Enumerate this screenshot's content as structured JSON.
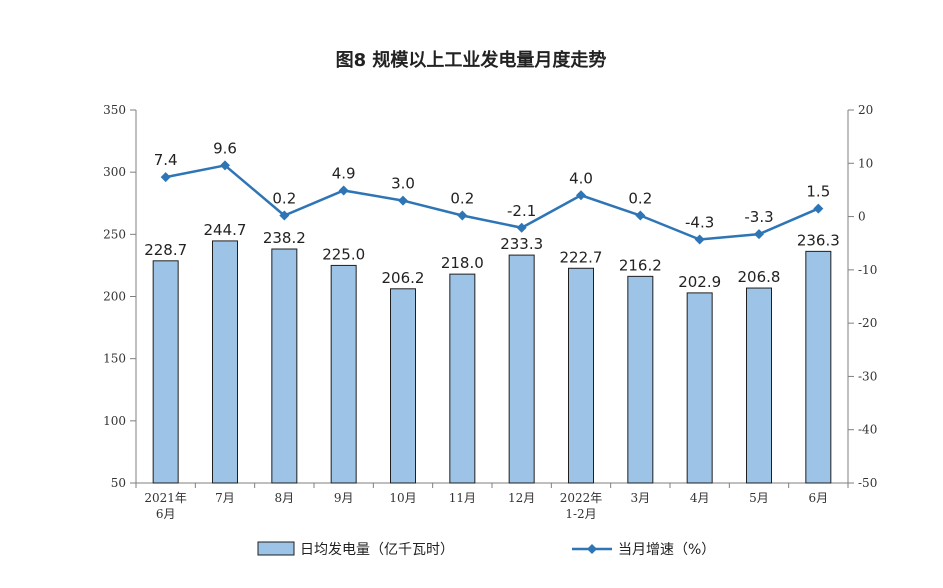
{
  "chart_data": {
    "type": "bar",
    "title": "图8  规模以上工业发电量月度走势",
    "categories": [
      [
        "2021年",
        "6月"
      ],
      [
        "7月"
      ],
      [
        "8月"
      ],
      [
        "9月"
      ],
      [
        "10月"
      ],
      [
        "11月"
      ],
      [
        "12月"
      ],
      [
        "2022年",
        "1-2月"
      ],
      [
        "3月"
      ],
      [
        "4月"
      ],
      [
        "5月"
      ],
      [
        "6月"
      ]
    ],
    "series": [
      {
        "name": "日均发电量（亿千瓦时）",
        "type": "bar",
        "axis": "left",
        "values": [
          228.7,
          244.7,
          238.2,
          225.0,
          206.2,
          218.0,
          233.3,
          222.7,
          216.2,
          202.9,
          206.8,
          236.3
        ],
        "labels": [
          "228.7",
          "244.7",
          "238.2",
          "225.0",
          "206.2",
          "218.0",
          "233.3",
          "222.7",
          "216.2",
          "202.9",
          "206.8",
          "236.3"
        ]
      },
      {
        "name": "当月增速（%）",
        "type": "line",
        "axis": "right",
        "values": [
          7.4,
          9.6,
          0.2,
          4.9,
          3.0,
          0.2,
          -2.1,
          4.0,
          0.2,
          -4.3,
          -3.3,
          1.5
        ],
        "labels": [
          "7.4",
          "9.6",
          "0.2",
          "4.9",
          "3.0",
          "0.2",
          "-2.1",
          "4.0",
          "0.2",
          "-4.3",
          "-3.3",
          "1.5"
        ]
      }
    ],
    "y_left": {
      "min": 50,
      "max": 350,
      "ticks": [
        "50",
        "100",
        "150",
        "200",
        "250",
        "300",
        "350"
      ]
    },
    "y_right": {
      "min": -50,
      "max": 20,
      "ticks": [
        "-50",
        "-40",
        "-30",
        "-20",
        "-10",
        "0",
        "10",
        "20"
      ]
    },
    "grid": false,
    "legend_position": "bottom",
    "colors": {
      "bar_fill": "#9DC3E6",
      "bar_stroke": "#1F1F1F",
      "line": "#2E75B6",
      "axis": "#7F7F7F"
    }
  }
}
